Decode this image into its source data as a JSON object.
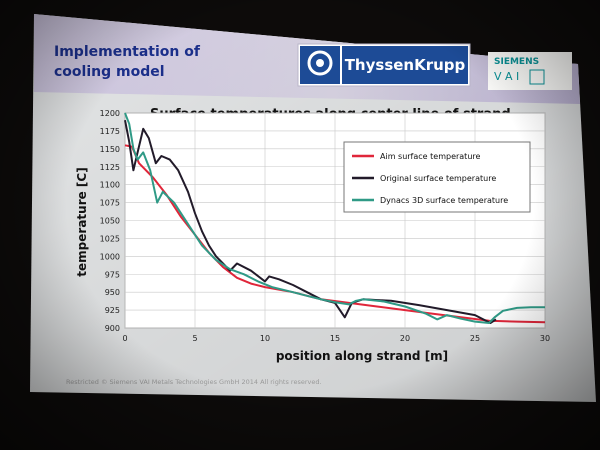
{
  "slide": {
    "heading_line1": "Implementation of",
    "heading_line2": "cooling model",
    "logo_text": "ThyssenKrupp",
    "siemens_text": "SIEMENS",
    "vai_text": "V A I",
    "footer": "Restricted © Siemens VAI Metals Technologies GmbH 2014 All rights reserved."
  },
  "colors": {
    "heading": "#1b2f8a",
    "logo_blue": "#1d4b96",
    "siemens_teal": "#0a8f94",
    "aim": "#e0263a",
    "original": "#221b2a",
    "dynacs": "#2f9a86"
  },
  "chart_data": {
    "type": "line",
    "title": "Surface temperatures along center line of strand",
    "xlabel": "position along strand [m]",
    "ylabel": "temperature [C]",
    "xlim": [
      0,
      30
    ],
    "ylim": [
      900,
      1200
    ],
    "x_ticks": [
      0,
      5,
      10,
      15,
      20,
      25,
      30
    ],
    "y_ticks": [
      900,
      925,
      950,
      975,
      1000,
      1025,
      1050,
      1075,
      1100,
      1125,
      1150,
      1175,
      1200
    ],
    "grid": true,
    "legend_position": "top-right",
    "series": [
      {
        "name": "Aim surface temperature",
        "color_key": "aim",
        "points": [
          [
            0,
            1155
          ],
          [
            0.5,
            1153
          ],
          [
            1,
            1130
          ],
          [
            2,
            1110
          ],
          [
            3,
            1085
          ],
          [
            4,
            1055
          ],
          [
            5,
            1030
          ],
          [
            6,
            1005
          ],
          [
            7,
            985
          ],
          [
            8,
            970
          ],
          [
            9,
            962
          ],
          [
            10,
            957
          ],
          [
            12,
            950
          ],
          [
            14,
            940
          ],
          [
            16,
            935
          ],
          [
            18,
            930
          ],
          [
            20,
            925
          ],
          [
            22,
            920
          ],
          [
            24,
            915
          ],
          [
            26,
            910
          ],
          [
            28,
            909
          ],
          [
            30,
            908
          ]
        ]
      },
      {
        "name": "Original surface temperature",
        "color_key": "original",
        "points": [
          [
            0,
            1190
          ],
          [
            0.3,
            1160
          ],
          [
            0.6,
            1120
          ],
          [
            0.9,
            1145
          ],
          [
            1.3,
            1178
          ],
          [
            1.7,
            1165
          ],
          [
            2.2,
            1130
          ],
          [
            2.6,
            1140
          ],
          [
            3.2,
            1135
          ],
          [
            3.8,
            1120
          ],
          [
            4.5,
            1090
          ],
          [
            5,
            1060
          ],
          [
            5.5,
            1035
          ],
          [
            6,
            1015
          ],
          [
            6.5,
            1000
          ],
          [
            7,
            990
          ],
          [
            7.5,
            980
          ],
          [
            8,
            990
          ],
          [
            9,
            980
          ],
          [
            10,
            965
          ],
          [
            10.3,
            972
          ],
          [
            11,
            968
          ],
          [
            12,
            960
          ],
          [
            13,
            950
          ],
          [
            14,
            940
          ],
          [
            15,
            935
          ],
          [
            15.7,
            915
          ],
          [
            16.2,
            935
          ],
          [
            17,
            940
          ],
          [
            19,
            938
          ],
          [
            21,
            932
          ],
          [
            23,
            925
          ],
          [
            25,
            918
          ],
          [
            26.1,
            907
          ],
          [
            26.5,
            912
          ]
        ]
      },
      {
        "name": "Dynacs 3D surface temperature",
        "color_key": "dynacs",
        "points": [
          [
            0,
            1200
          ],
          [
            0.3,
            1185
          ],
          [
            0.6,
            1150
          ],
          [
            0.9,
            1135
          ],
          [
            1.3,
            1145
          ],
          [
            1.8,
            1120
          ],
          [
            2.3,
            1075
          ],
          [
            2.7,
            1090
          ],
          [
            3.5,
            1075
          ],
          [
            4.5,
            1045
          ],
          [
            5.5,
            1015
          ],
          [
            6.5,
            995
          ],
          [
            7.5,
            982
          ],
          [
            8.5,
            975
          ],
          [
            9.5,
            965
          ],
          [
            10.5,
            957
          ],
          [
            12,
            950
          ],
          [
            13,
            945
          ],
          [
            14,
            940
          ],
          [
            15,
            936
          ],
          [
            16,
            933
          ],
          [
            16.5,
            938
          ],
          [
            17,
            940
          ],
          [
            18.5,
            937
          ],
          [
            20,
            930
          ],
          [
            21.5,
            920
          ],
          [
            22.3,
            912
          ],
          [
            23,
            918
          ],
          [
            24,
            913
          ],
          [
            25,
            909
          ],
          [
            26,
            907
          ],
          [
            26.4,
            915
          ],
          [
            27,
            924
          ],
          [
            28,
            928
          ],
          [
            29,
            929
          ],
          [
            30,
            929
          ]
        ]
      }
    ]
  }
}
